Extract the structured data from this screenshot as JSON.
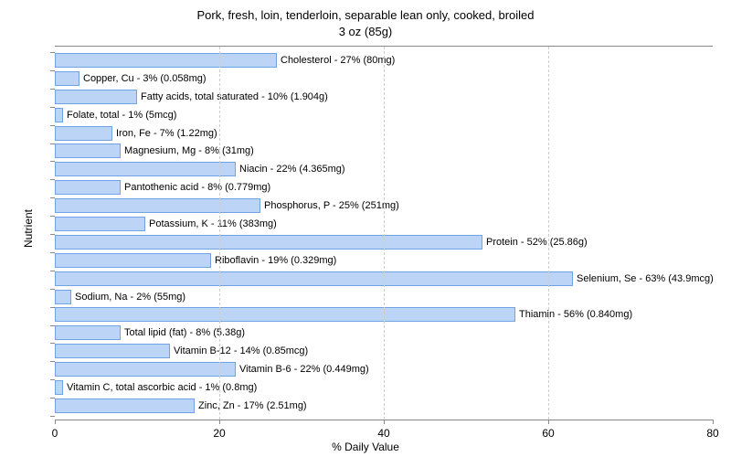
{
  "chart": {
    "type": "bar-horizontal",
    "title_line1": "Pork, fresh, loin, tenderloin, separable lean only, cooked, broiled",
    "title_line2": "3 oz (85g)",
    "title_fontsize": 13,
    "xlabel": "% Daily Value",
    "ylabel": "Nutrient",
    "label_fontsize": 12,
    "xlim": [
      0,
      80
    ],
    "xtick_step": 20,
    "xticks": [
      0,
      20,
      40,
      60,
      80
    ],
    "background_color": "#ffffff",
    "grid_color": "#cccccc",
    "axis_color": "#888888",
    "bar_fill": "#bcd5f6",
    "bar_border": "#6fa3e6",
    "bar_label_fontsize": 11,
    "bars": [
      {
        "name": "Cholesterol",
        "pct": 27,
        "amount": "80mg"
      },
      {
        "name": "Copper, Cu",
        "pct": 3,
        "amount": "0.058mg"
      },
      {
        "name": "Fatty acids, total saturated",
        "pct": 10,
        "amount": "1.904g"
      },
      {
        "name": "Folate, total",
        "pct": 1,
        "amount": "5mcg"
      },
      {
        "name": "Iron, Fe",
        "pct": 7,
        "amount": "1.22mg"
      },
      {
        "name": "Magnesium, Mg",
        "pct": 8,
        "amount": "31mg"
      },
      {
        "name": "Niacin",
        "pct": 22,
        "amount": "4.365mg"
      },
      {
        "name": "Pantothenic acid",
        "pct": 8,
        "amount": "0.779mg"
      },
      {
        "name": "Phosphorus, P",
        "pct": 25,
        "amount": "251mg"
      },
      {
        "name": "Potassium, K",
        "pct": 11,
        "amount": "383mg"
      },
      {
        "name": "Protein",
        "pct": 52,
        "amount": "25.86g"
      },
      {
        "name": "Riboflavin",
        "pct": 19,
        "amount": "0.329mg"
      },
      {
        "name": "Selenium, Se",
        "pct": 63,
        "amount": "43.9mcg"
      },
      {
        "name": "Sodium, Na",
        "pct": 2,
        "amount": "55mg"
      },
      {
        "name": "Thiamin",
        "pct": 56,
        "amount": "0.840mg"
      },
      {
        "name": "Total lipid (fat)",
        "pct": 8,
        "amount": "5.38g"
      },
      {
        "name": "Vitamin B-12",
        "pct": 14,
        "amount": "0.85mcg"
      },
      {
        "name": "Vitamin B-6",
        "pct": 22,
        "amount": "0.449mg"
      },
      {
        "name": "Vitamin C, total ascorbic acid",
        "pct": 1,
        "amount": "0.8mg"
      },
      {
        "name": "Zinc, Zn",
        "pct": 17,
        "amount": "2.51mg"
      }
    ]
  }
}
